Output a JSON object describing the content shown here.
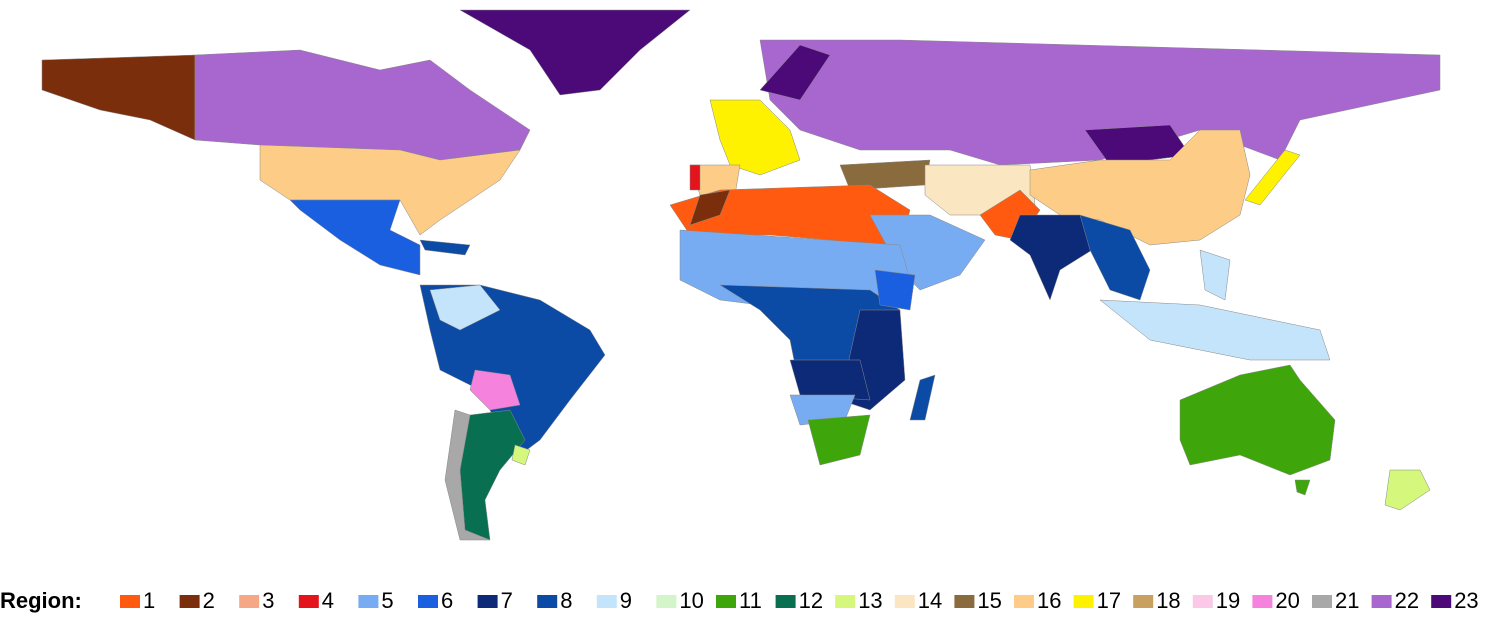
{
  "legend": {
    "title": "Region:",
    "items": [
      {
        "label": "1",
        "color": "#ff5a0f"
      },
      {
        "label": "2",
        "color": "#7b2e0c"
      },
      {
        "label": "3",
        "color": "#f6a785"
      },
      {
        "label": "4",
        "color": "#e3141c"
      },
      {
        "label": "5",
        "color": "#78acf2"
      },
      {
        "label": "6",
        "color": "#1a5fe0"
      },
      {
        "label": "7",
        "color": "#0c2a78"
      },
      {
        "label": "8",
        "color": "#0b4ba6"
      },
      {
        "label": "9",
        "color": "#c3e4fa"
      },
      {
        "label": "10",
        "color": "#d4f5c9"
      },
      {
        "label": "11",
        "color": "#3ea60a"
      },
      {
        "label": "12",
        "color": "#087050"
      },
      {
        "label": "13",
        "color": "#d4f77c"
      },
      {
        "label": "14",
        "color": "#fbe6c2"
      },
      {
        "label": "15",
        "color": "#8a6b3e"
      },
      {
        "label": "16",
        "color": "#fdcd88"
      },
      {
        "label": "17",
        "color": "#fff200"
      },
      {
        "label": "18",
        "color": "#c8a060"
      },
      {
        "label": "19",
        "color": "#fbc8e8"
      },
      {
        "label": "20",
        "color": "#f582dc"
      },
      {
        "label": "21",
        "color": "#a8a8a8"
      },
      {
        "label": "22",
        "color": "#a866cf"
      },
      {
        "label": "23",
        "color": "#4b0a78"
      }
    ]
  }
}
